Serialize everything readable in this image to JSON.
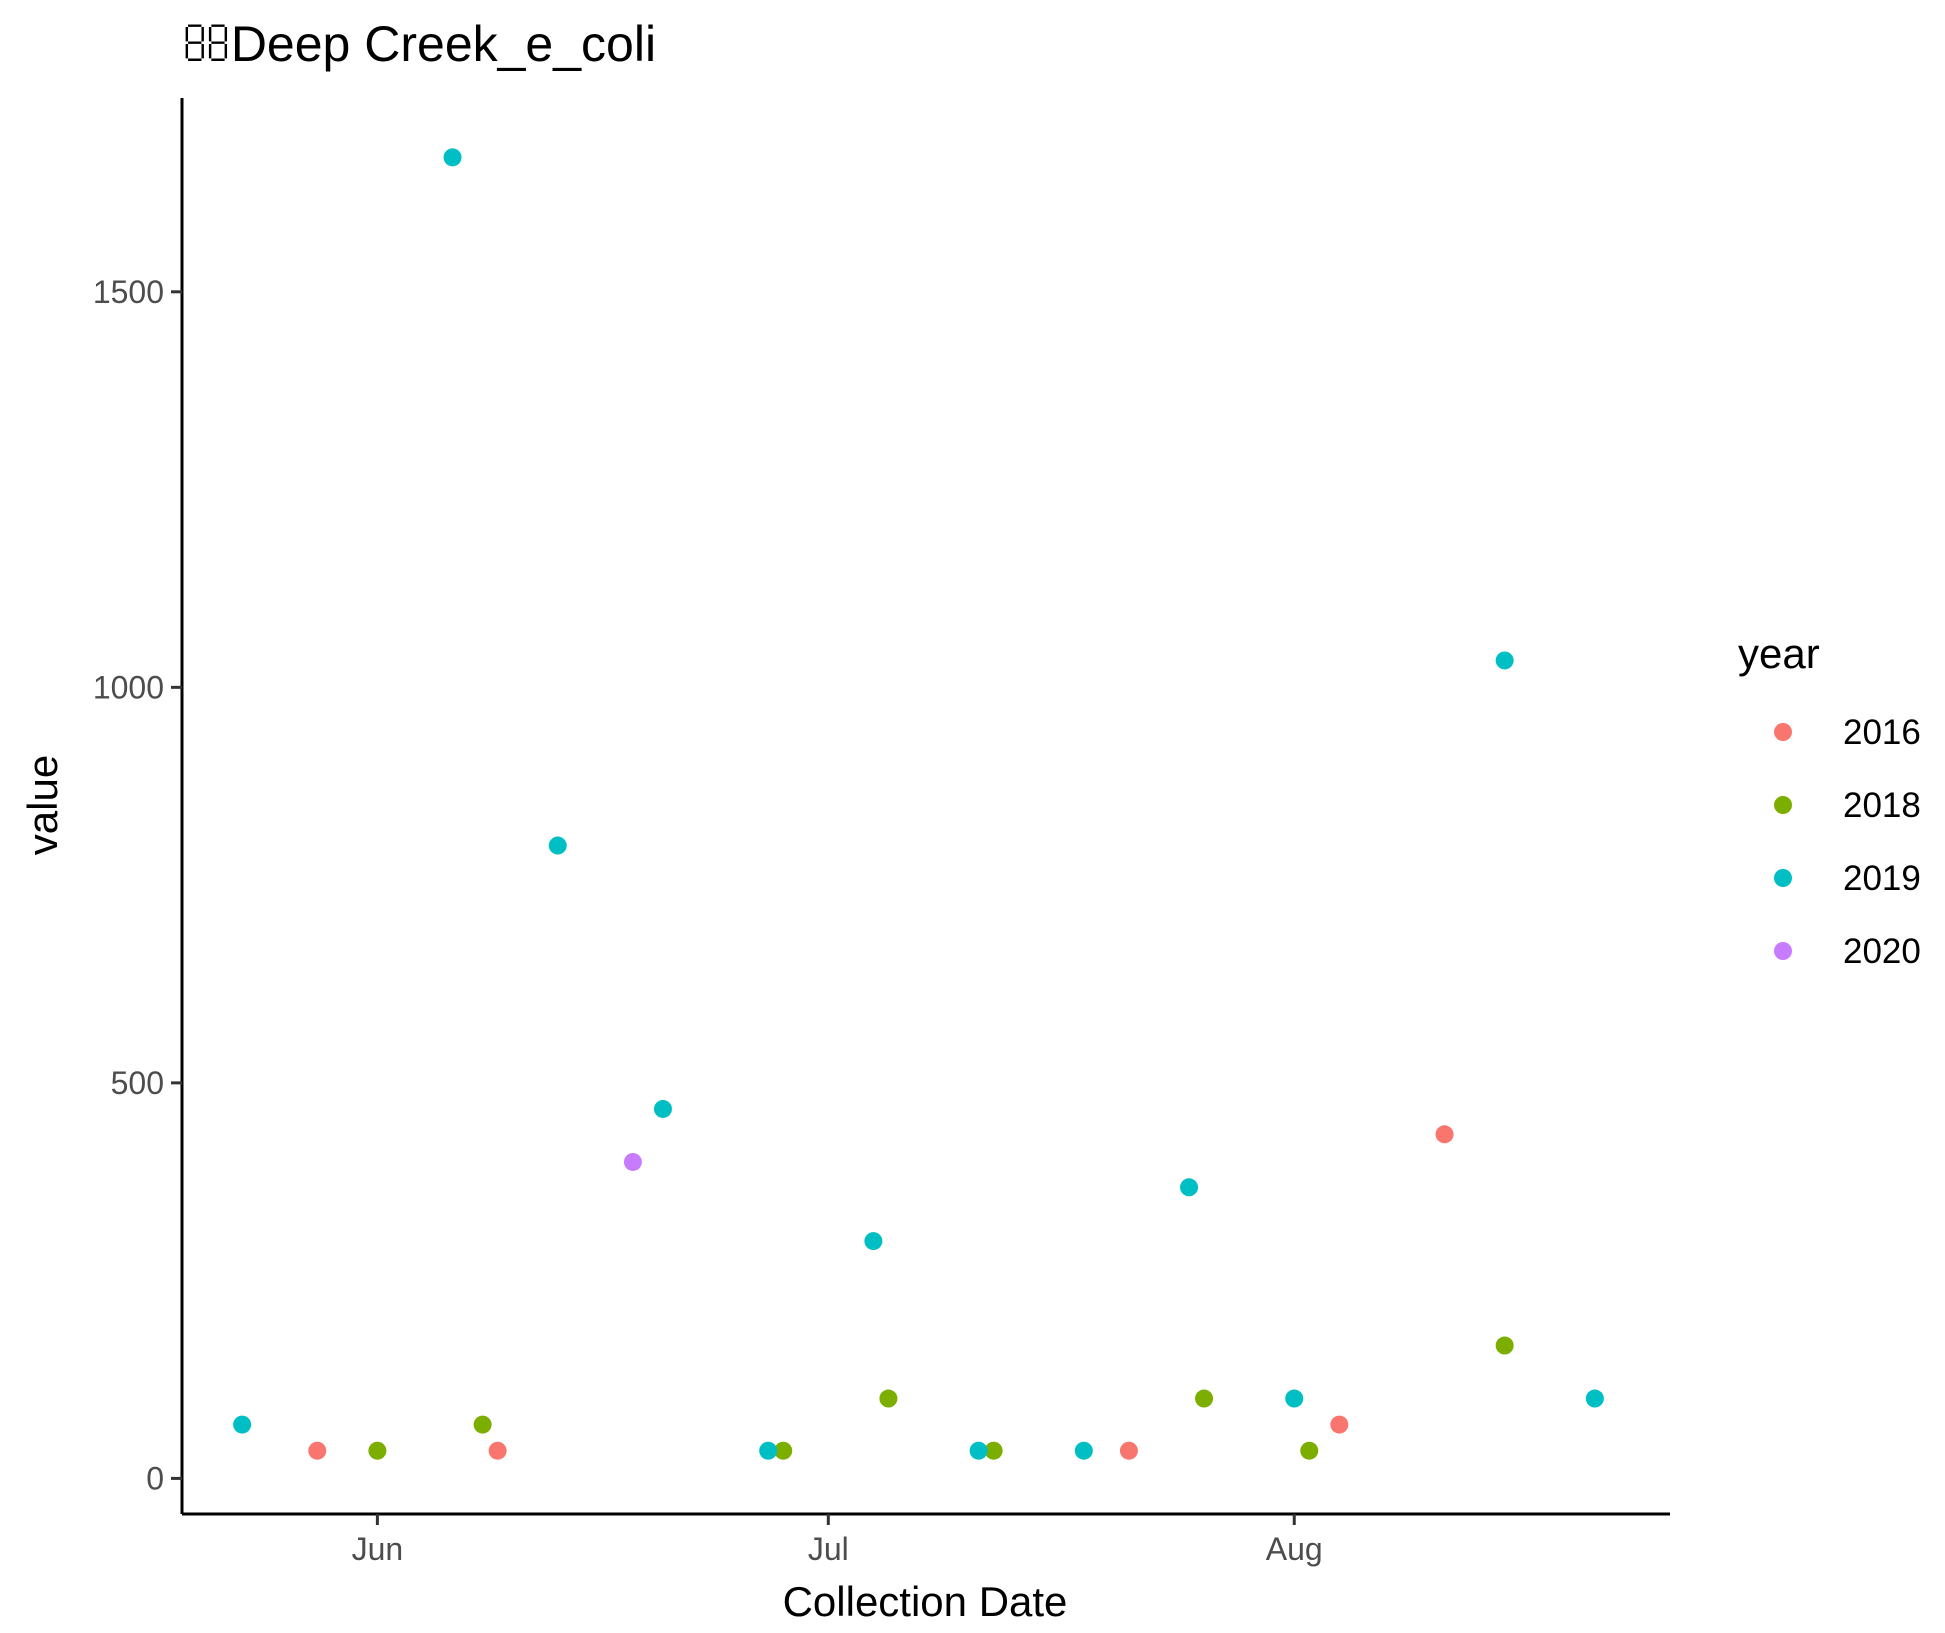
{
  "chart_data": {
    "type": "scatter",
    "title": "Deep Creek_e_coli",
    "xlabel": "Collection Date",
    "ylabel": "value",
    "x_axis_type": "date",
    "xlim": [
      "2000-05-19",
      "2000-08-26"
    ],
    "ylim": [
      -45,
      1745
    ],
    "x_ticks": [
      {
        "value": "2000-06-01",
        "label": "Jun"
      },
      {
        "value": "2000-07-01",
        "label": "Jul"
      },
      {
        "value": "2000-08-01",
        "label": "Aug"
      }
    ],
    "y_ticks": [
      {
        "value": 0,
        "label": "0"
      },
      {
        "value": 500,
        "label": "500"
      },
      {
        "value": 1000,
        "label": "1000"
      },
      {
        "value": 1500,
        "label": "1500"
      }
    ],
    "grid": false,
    "legend": {
      "title": "year",
      "placement": "right"
    },
    "series": [
      {
        "name": "2016",
        "color": "#F8766D",
        "points": [
          {
            "x": "2000-05-28",
            "y": 35
          },
          {
            "x": "2000-06-09",
            "y": 35
          },
          {
            "x": "2000-07-21",
            "y": 35
          },
          {
            "x": "2000-08-04",
            "y": 68
          },
          {
            "x": "2000-08-11",
            "y": 435
          }
        ]
      },
      {
        "name": "2018",
        "color": "#7CAE00",
        "points": [
          {
            "x": "2000-06-01",
            "y": 35
          },
          {
            "x": "2000-06-08",
            "y": 68
          },
          {
            "x": "2000-06-28",
            "y": 35
          },
          {
            "x": "2000-07-05",
            "y": 101
          },
          {
            "x": "2000-07-12",
            "y": 35
          },
          {
            "x": "2000-07-26",
            "y": 101
          },
          {
            "x": "2000-08-02",
            "y": 35
          },
          {
            "x": "2000-08-15",
            "y": 168
          }
        ]
      },
      {
        "name": "2019",
        "color": "#00BFC4",
        "points": [
          {
            "x": "2000-05-23",
            "y": 68
          },
          {
            "x": "2000-06-06",
            "y": 1670
          },
          {
            "x": "2000-06-13",
            "y": 800
          },
          {
            "x": "2000-06-20",
            "y": 467
          },
          {
            "x": "2000-06-27",
            "y": 35
          },
          {
            "x": "2000-07-04",
            "y": 300
          },
          {
            "x": "2000-07-11",
            "y": 35
          },
          {
            "x": "2000-07-18",
            "y": 35
          },
          {
            "x": "2000-07-25",
            "y": 368
          },
          {
            "x": "2000-08-01",
            "y": 101
          },
          {
            "x": "2000-08-15",
            "y": 1034
          },
          {
            "x": "2000-08-21",
            "y": 101
          }
        ]
      },
      {
        "name": "2020",
        "color": "#C77CFF",
        "points": [
          {
            "x": "2000-06-18",
            "y": 400
          }
        ]
      }
    ]
  }
}
